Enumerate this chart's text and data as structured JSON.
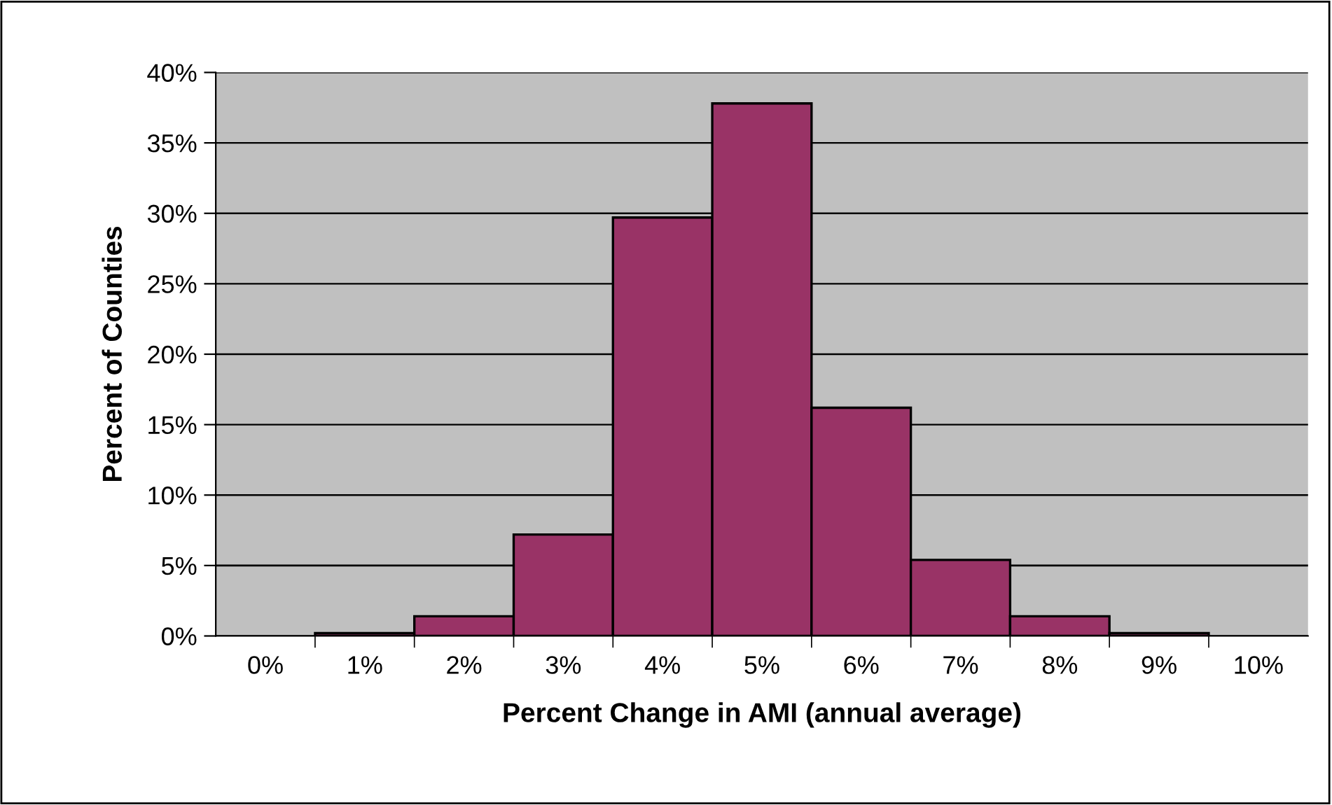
{
  "chart_data": {
    "type": "bar",
    "xlabel": "Percent Change in AMI (annual average)",
    "ylabel": "Percent of Counties",
    "categories": [
      "0%",
      "1%",
      "2%",
      "3%",
      "4%",
      "5%",
      "6%",
      "7%",
      "8%",
      "9%",
      "10%"
    ],
    "values": [
      0,
      0.2,
      1.4,
      7.2,
      29.7,
      37.8,
      16.2,
      5.4,
      1.4,
      0.2,
      0
    ],
    "color": "#993366",
    "ylim": [
      0,
      40
    ],
    "yticks": [
      {
        "value": 0,
        "label": "0%"
      },
      {
        "value": 5,
        "label": "5%"
      },
      {
        "value": 10,
        "label": "10%"
      },
      {
        "value": 15,
        "label": "15%"
      },
      {
        "value": 20,
        "label": "20%"
      },
      {
        "value": 25,
        "label": "25%"
      },
      {
        "value": 30,
        "label": "30%"
      },
      {
        "value": 35,
        "label": "35%"
      },
      {
        "value": 40,
        "label": "40%"
      }
    ],
    "grid": "y"
  }
}
